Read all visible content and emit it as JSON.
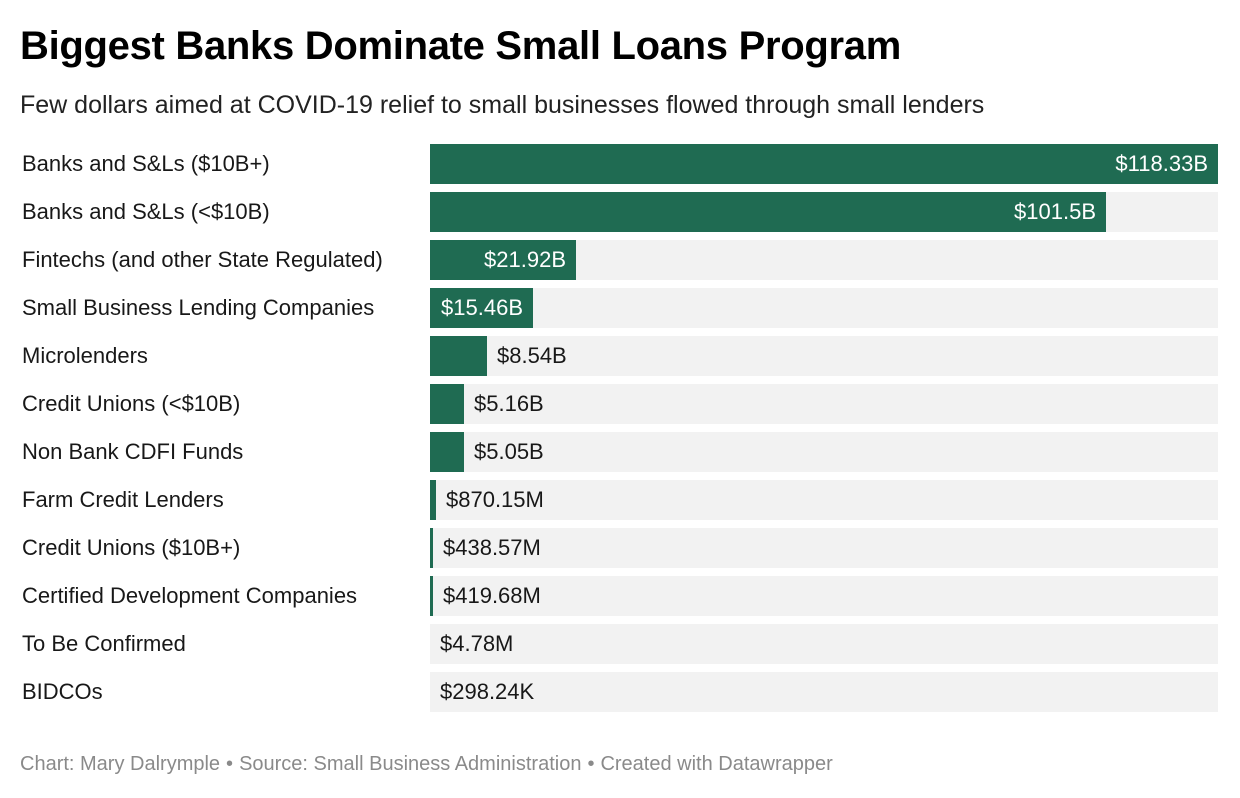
{
  "chart_data": {
    "type": "bar",
    "orientation": "horizontal",
    "title": "Biggest Banks Dominate Small Loans Program",
    "subtitle": "Few dollars aimed at COVID-19 relief to small businesses flowed through small lenders",
    "unit": "USD",
    "categories": [
      "Banks and S&Ls ($10B+)",
      "Banks and S&Ls (<$10B)",
      "Fintechs (and other State Regulated)",
      "Small Business Lending Companies",
      "Microlenders",
      "Credit Unions (<$10B)",
      "Non Bank CDFI Funds",
      "Farm Credit Lenders",
      "Credit Unions ($10B+)",
      "Certified Development Companies",
      "To Be Confirmed",
      "BIDCOs"
    ],
    "values": [
      118330000000,
      101500000000,
      21920000000,
      15460000000,
      8540000000,
      5160000000,
      5050000000,
      870150000,
      438570000,
      419680000,
      4780000,
      298240
    ],
    "value_labels": [
      "$118.33B",
      "$101.5B",
      "$21.92B",
      "$15.46B",
      "$8.54B",
      "$5.16B",
      "$5.05B",
      "$870.15M",
      "$438.57M",
      "$419.68M",
      "$4.78M",
      "$298.24K"
    ],
    "xlim": [
      0,
      118330000000
    ],
    "grid": false,
    "legend": "none",
    "bar_color": "#1f6b52",
    "track_color": "#f2f2f2"
  },
  "footer": {
    "credit": "Chart: Mary Dalrymple",
    "source": "Source: Small Business Administration",
    "tool": "Created with Datawrapper",
    "separator": "•"
  },
  "colors": {
    "bar": "#1f6b52",
    "track": "#f2f2f2",
    "footer_text": "#8a8a8a"
  }
}
